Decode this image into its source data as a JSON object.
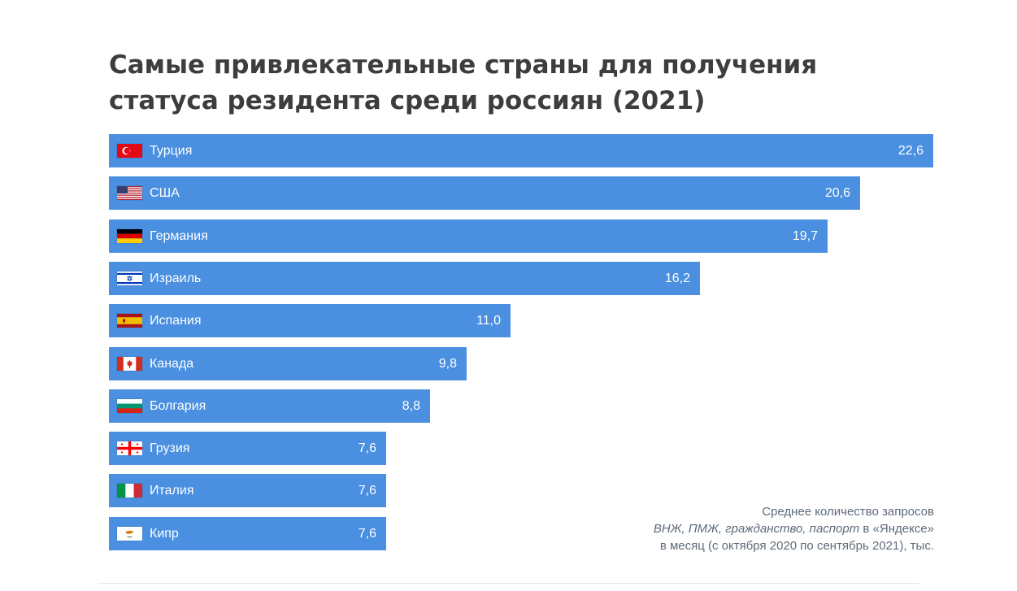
{
  "title_line1": "Самые привлекательные страны для получения",
  "title_line2": "статуса резидента среди россиян (2021)",
  "note": {
    "line1": "Среднее количество запросов",
    "line2_italic": "ВНЖ, ПМЖ, гражданство, паспорт",
    "line2_rest": " в «Яндексе»",
    "line3": "в месяц (с октября 2020 по сентябрь 2021), тыс."
  },
  "colors": {
    "bar": "#4a8fe0",
    "title": "#3d3d3d",
    "note": "#5e6a78"
  },
  "chart_data": {
    "type": "bar",
    "orientation": "horizontal",
    "title": "Самые привлекательные страны для получения статуса резидента среди россиян (2021)",
    "unit": "тыс.",
    "categories": [
      "Турция",
      "США",
      "Германия",
      "Израиль",
      "Испания",
      "Канада",
      "Болгария",
      "Грузия",
      "Италия",
      "Кипр"
    ],
    "flags": [
      "turkey-flag-icon",
      "usa-flag-icon",
      "germany-flag-icon",
      "israel-flag-icon",
      "spain-flag-icon",
      "canada-flag-icon",
      "bulgaria-flag-icon",
      "georgia-flag-icon",
      "italy-flag-icon",
      "cyprus-flag-icon"
    ],
    "values": [
      22.6,
      20.6,
      19.7,
      16.2,
      11.0,
      9.8,
      8.8,
      7.6,
      7.6,
      7.6
    ],
    "value_labels": [
      "22,6",
      "20,6",
      "19,7",
      "16,2",
      "11,0",
      "9,8",
      "8,8",
      "7,6",
      "7,6",
      "7,6"
    ],
    "xlim": [
      0,
      22.6
    ],
    "grid": false,
    "legend": "none"
  }
}
